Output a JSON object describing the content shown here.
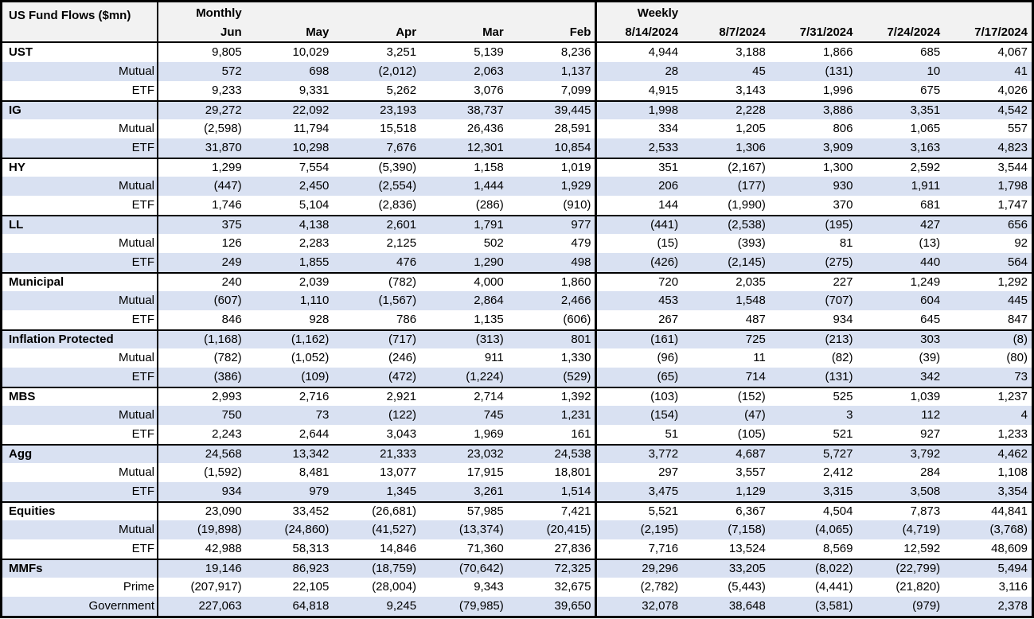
{
  "colors": {
    "zebra": "#D9E1F2",
    "header": "#F2F2F2",
    "border": "#000000",
    "text": "#000000"
  },
  "chart_data": {
    "type": "table",
    "title": "US Fund Flows ($mn)",
    "column_groups": [
      {
        "label": "Monthly",
        "columns": [
          "Jun",
          "May",
          "Apr",
          "Mar",
          "Feb"
        ]
      },
      {
        "label": "Weekly",
        "columns": [
          "8/14/2024",
          "8/7/2024",
          "7/31/2024",
          "7/24/2024",
          "7/17/2024"
        ]
      }
    ],
    "rows": [
      {
        "label": "UST",
        "style": "group",
        "monthly": [
          "9,805",
          "10,029",
          "3,251",
          "5,139",
          "8,236"
        ],
        "weekly": [
          "4,944",
          "3,188",
          "1,866",
          "685",
          "4,067"
        ]
      },
      {
        "label": "Mutual",
        "style": "sub",
        "monthly": [
          "572",
          "698",
          "(2,012)",
          "2,063",
          "1,137"
        ],
        "weekly": [
          "28",
          "45",
          "(131)",
          "10",
          "41"
        ]
      },
      {
        "label": "ETF",
        "style": "sub",
        "monthly": [
          "9,233",
          "9,331",
          "5,262",
          "3,076",
          "7,099"
        ],
        "weekly": [
          "4,915",
          "3,143",
          "1,996",
          "675",
          "4,026"
        ]
      },
      {
        "label": "IG",
        "style": "group",
        "monthly": [
          "29,272",
          "22,092",
          "23,193",
          "38,737",
          "39,445"
        ],
        "weekly": [
          "1,998",
          "2,228",
          "3,886",
          "3,351",
          "4,542"
        ]
      },
      {
        "label": "Mutual",
        "style": "sub",
        "monthly": [
          "(2,598)",
          "11,794",
          "15,518",
          "26,436",
          "28,591"
        ],
        "weekly": [
          "334",
          "1,205",
          "806",
          "1,065",
          "557"
        ]
      },
      {
        "label": "ETF",
        "style": "sub",
        "monthly": [
          "31,870",
          "10,298",
          "7,676",
          "12,301",
          "10,854"
        ],
        "weekly": [
          "2,533",
          "1,306",
          "3,909",
          "3,163",
          "4,823"
        ]
      },
      {
        "label": "HY",
        "style": "group",
        "monthly": [
          "1,299",
          "7,554",
          "(5,390)",
          "1,158",
          "1,019"
        ],
        "weekly": [
          "351",
          "(2,167)",
          "1,300",
          "2,592",
          "3,544"
        ]
      },
      {
        "label": "Mutual",
        "style": "sub",
        "monthly": [
          "(447)",
          "2,450",
          "(2,554)",
          "1,444",
          "1,929"
        ],
        "weekly": [
          "206",
          "(177)",
          "930",
          "1,911",
          "1,798"
        ]
      },
      {
        "label": "ETF",
        "style": "sub",
        "monthly": [
          "1,746",
          "5,104",
          "(2,836)",
          "(286)",
          "(910)"
        ],
        "weekly": [
          "144",
          "(1,990)",
          "370",
          "681",
          "1,747"
        ]
      },
      {
        "label": "LL",
        "style": "group",
        "monthly": [
          "375",
          "4,138",
          "2,601",
          "1,791",
          "977"
        ],
        "weekly": [
          "(441)",
          "(2,538)",
          "(195)",
          "427",
          "656"
        ]
      },
      {
        "label": "Mutual",
        "style": "sub",
        "monthly": [
          "126",
          "2,283",
          "2,125",
          "502",
          "479"
        ],
        "weekly": [
          "(15)",
          "(393)",
          "81",
          "(13)",
          "92"
        ]
      },
      {
        "label": "ETF",
        "style": "sub",
        "monthly": [
          "249",
          "1,855",
          "476",
          "1,290",
          "498"
        ],
        "weekly": [
          "(426)",
          "(2,145)",
          "(275)",
          "440",
          "564"
        ]
      },
      {
        "label": "Municipal",
        "style": "group",
        "monthly": [
          "240",
          "2,039",
          "(782)",
          "4,000",
          "1,860"
        ],
        "weekly": [
          "720",
          "2,035",
          "227",
          "1,249",
          "1,292"
        ]
      },
      {
        "label": "Mutual",
        "style": "sub",
        "monthly": [
          "(607)",
          "1,110",
          "(1,567)",
          "2,864",
          "2,466"
        ],
        "weekly": [
          "453",
          "1,548",
          "(707)",
          "604",
          "445"
        ]
      },
      {
        "label": "ETF",
        "style": "sub",
        "monthly": [
          "846",
          "928",
          "786",
          "1,135",
          "(606)"
        ],
        "weekly": [
          "267",
          "487",
          "934",
          "645",
          "847"
        ]
      },
      {
        "label": "Inflation Protected",
        "style": "group",
        "monthly": [
          "(1,168)",
          "(1,162)",
          "(717)",
          "(313)",
          "801"
        ],
        "weekly": [
          "(161)",
          "725",
          "(213)",
          "303",
          "(8)"
        ]
      },
      {
        "label": "Mutual",
        "style": "sub",
        "monthly": [
          "(782)",
          "(1,052)",
          "(246)",
          "911",
          "1,330"
        ],
        "weekly": [
          "(96)",
          "11",
          "(82)",
          "(39)",
          "(80)"
        ]
      },
      {
        "label": "ETF",
        "style": "sub",
        "monthly": [
          "(386)",
          "(109)",
          "(472)",
          "(1,224)",
          "(529)"
        ],
        "weekly": [
          "(65)",
          "714",
          "(131)",
          "342",
          "73"
        ]
      },
      {
        "label": "MBS",
        "style": "group",
        "monthly": [
          "2,993",
          "2,716",
          "2,921",
          "2,714",
          "1,392"
        ],
        "weekly": [
          "(103)",
          "(152)",
          "525",
          "1,039",
          "1,237"
        ]
      },
      {
        "label": "Mutual",
        "style": "sub",
        "monthly": [
          "750",
          "73",
          "(122)",
          "745",
          "1,231"
        ],
        "weekly": [
          "(154)",
          "(47)",
          "3",
          "112",
          "4"
        ]
      },
      {
        "label": "ETF",
        "style": "sub",
        "monthly": [
          "2,243",
          "2,644",
          "3,043",
          "1,969",
          "161"
        ],
        "weekly": [
          "51",
          "(105)",
          "521",
          "927",
          "1,233"
        ]
      },
      {
        "label": "Agg",
        "style": "group",
        "monthly": [
          "24,568",
          "13,342",
          "21,333",
          "23,032",
          "24,538"
        ],
        "weekly": [
          "3,772",
          "4,687",
          "5,727",
          "3,792",
          "4,462"
        ]
      },
      {
        "label": "Mutual",
        "style": "sub",
        "monthly": [
          "(1,592)",
          "8,481",
          "13,077",
          "17,915",
          "18,801"
        ],
        "weekly": [
          "297",
          "3,557",
          "2,412",
          "284",
          "1,108"
        ]
      },
      {
        "label": "ETF",
        "style": "sub",
        "monthly": [
          "934",
          "979",
          "1,345",
          "3,261",
          "1,514"
        ],
        "weekly": [
          "3,475",
          "1,129",
          "3,315",
          "3,508",
          "3,354"
        ]
      },
      {
        "label": "Equities",
        "style": "group",
        "monthly": [
          "23,090",
          "33,452",
          "(26,681)",
          "57,985",
          "7,421"
        ],
        "weekly": [
          "5,521",
          "6,367",
          "4,504",
          "7,873",
          "44,841"
        ]
      },
      {
        "label": "Mutual",
        "style": "sub",
        "monthly": [
          "(19,898)",
          "(24,860)",
          "(41,527)",
          "(13,374)",
          "(20,415)"
        ],
        "weekly": [
          "(2,195)",
          "(7,158)",
          "(4,065)",
          "(4,719)",
          "(3,768)"
        ]
      },
      {
        "label": "ETF",
        "style": "sub",
        "monthly": [
          "42,988",
          "58,313",
          "14,846",
          "71,360",
          "27,836"
        ],
        "weekly": [
          "7,716",
          "13,524",
          "8,569",
          "12,592",
          "48,609"
        ]
      },
      {
        "label": "MMFs",
        "style": "group",
        "monthly": [
          "19,146",
          "86,923",
          "(18,759)",
          "(70,642)",
          "72,325"
        ],
        "weekly": [
          "29,296",
          "33,205",
          "(8,022)",
          "(22,799)",
          "5,494"
        ]
      },
      {
        "label": "Prime",
        "style": "sub",
        "monthly": [
          "(207,917)",
          "22,105",
          "(28,004)",
          "9,343",
          "32,675"
        ],
        "weekly": [
          "(2,782)",
          "(5,443)",
          "(4,441)",
          "(21,820)",
          "3,116"
        ]
      },
      {
        "label": "Government",
        "style": "sub",
        "monthly": [
          "227,063",
          "64,818",
          "9,245",
          "(79,985)",
          "39,650"
        ],
        "weekly": [
          "32,078",
          "38,648",
          "(3,581)",
          "(979)",
          "2,378"
        ]
      }
    ]
  }
}
